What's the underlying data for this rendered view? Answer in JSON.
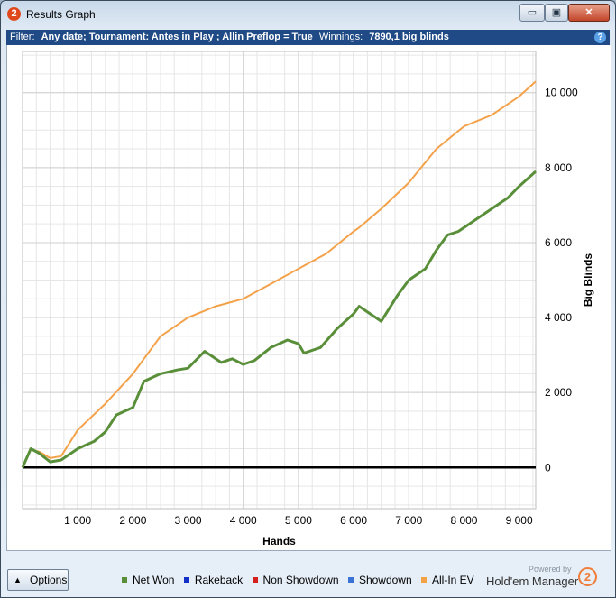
{
  "window": {
    "title": "Results Graph",
    "app_icon": "2",
    "buttons": [
      {
        "name": "minimize-button",
        "label": "▭"
      },
      {
        "name": "maximize-button",
        "label": "▣"
      },
      {
        "name": "close-button",
        "label": "✕"
      }
    ]
  },
  "filter": {
    "label": "Filter:",
    "text": "Any date; Tournament: Antes in Play ; Allin Preflop = True",
    "winnings_label": "Winnings:",
    "winnings_value": "7890,1 big blinds",
    "help": "?"
  },
  "chart_data": {
    "type": "line",
    "xlabel": "Hands",
    "ylabel": "Big Blinds",
    "xlim": [
      0,
      9300
    ],
    "ylim": [
      -1100,
      11100
    ],
    "xticks": [
      1000,
      2000,
      3000,
      4000,
      5000,
      6000,
      7000,
      8000,
      9000
    ],
    "xtick_labels": [
      "1 000",
      "2 000",
      "3 000",
      "4 000",
      "5 000",
      "6 000",
      "7 000",
      "8 000",
      "9 000"
    ],
    "yticks": [
      0,
      2000,
      4000,
      6000,
      8000,
      10000
    ],
    "ytick_labels": [
      "0",
      "2 000",
      "4 000",
      "6 000",
      "8 000",
      "10 000"
    ],
    "grid": true,
    "legend_position": "bottom",
    "series": [
      {
        "name": "All-In EV",
        "color": "#f4a24a",
        "x": [
          0,
          150,
          300,
          500,
          700,
          1000,
          1500,
          2000,
          2500,
          3000,
          3500,
          4000,
          4500,
          5000,
          5500,
          6000,
          6100,
          6500,
          7000,
          7500,
          8000,
          8500,
          9000,
          9300
        ],
        "y": [
          0,
          480,
          420,
          250,
          300,
          1000,
          1700,
          2500,
          3500,
          4000,
          4300,
          4500,
          4900,
          5300,
          5700,
          6300,
          6400,
          6900,
          7600,
          8500,
          9100,
          9400,
          9900,
          10300
        ]
      },
      {
        "name": "Net Won",
        "color": "#5a8f3a",
        "x": [
          0,
          150,
          300,
          500,
          700,
          1000,
          1300,
          1500,
          1700,
          2000,
          2200,
          2500,
          2800,
          3000,
          3300,
          3600,
          3800,
          4000,
          4200,
          4500,
          4800,
          5000,
          5100,
          5400,
          5700,
          6000,
          6100,
          6500,
          6800,
          7000,
          7300,
          7500,
          7700,
          7900,
          8200,
          8500,
          8800,
          9000,
          9300
        ],
        "y": [
          0,
          500,
          380,
          150,
          200,
          500,
          700,
          950,
          1400,
          1600,
          2300,
          2500,
          2600,
          2650,
          3100,
          2800,
          2900,
          2750,
          2850,
          3200,
          3400,
          3300,
          3050,
          3200,
          3700,
          4100,
          4300,
          3900,
          4600,
          5000,
          5300,
          5800,
          6200,
          6300,
          6600,
          6900,
          7200,
          7500,
          7900
        ]
      },
      {
        "name": "Rakeback",
        "color": "#1530c8",
        "x": [],
        "y": []
      },
      {
        "name": "Non Showdown",
        "color": "#d62020",
        "x": [],
        "y": []
      },
      {
        "name": "Showdown",
        "color": "#3a72d6",
        "x": [],
        "y": []
      }
    ]
  },
  "legend": [
    {
      "label": "Net Won",
      "color": "#5a8f3a"
    },
    {
      "label": "Rakeback",
      "color": "#1530c8"
    },
    {
      "label": "Non Showdown",
      "color": "#d62020"
    },
    {
      "label": "Showdown",
      "color": "#3a72d6"
    },
    {
      "label": "All-In EV",
      "color": "#f4a24a"
    }
  ],
  "footer": {
    "options_label": "Options",
    "options_arrow": "▲",
    "powered_by": "Powered by",
    "brand": "Hold'em Manager",
    "brand_logo": "2"
  }
}
